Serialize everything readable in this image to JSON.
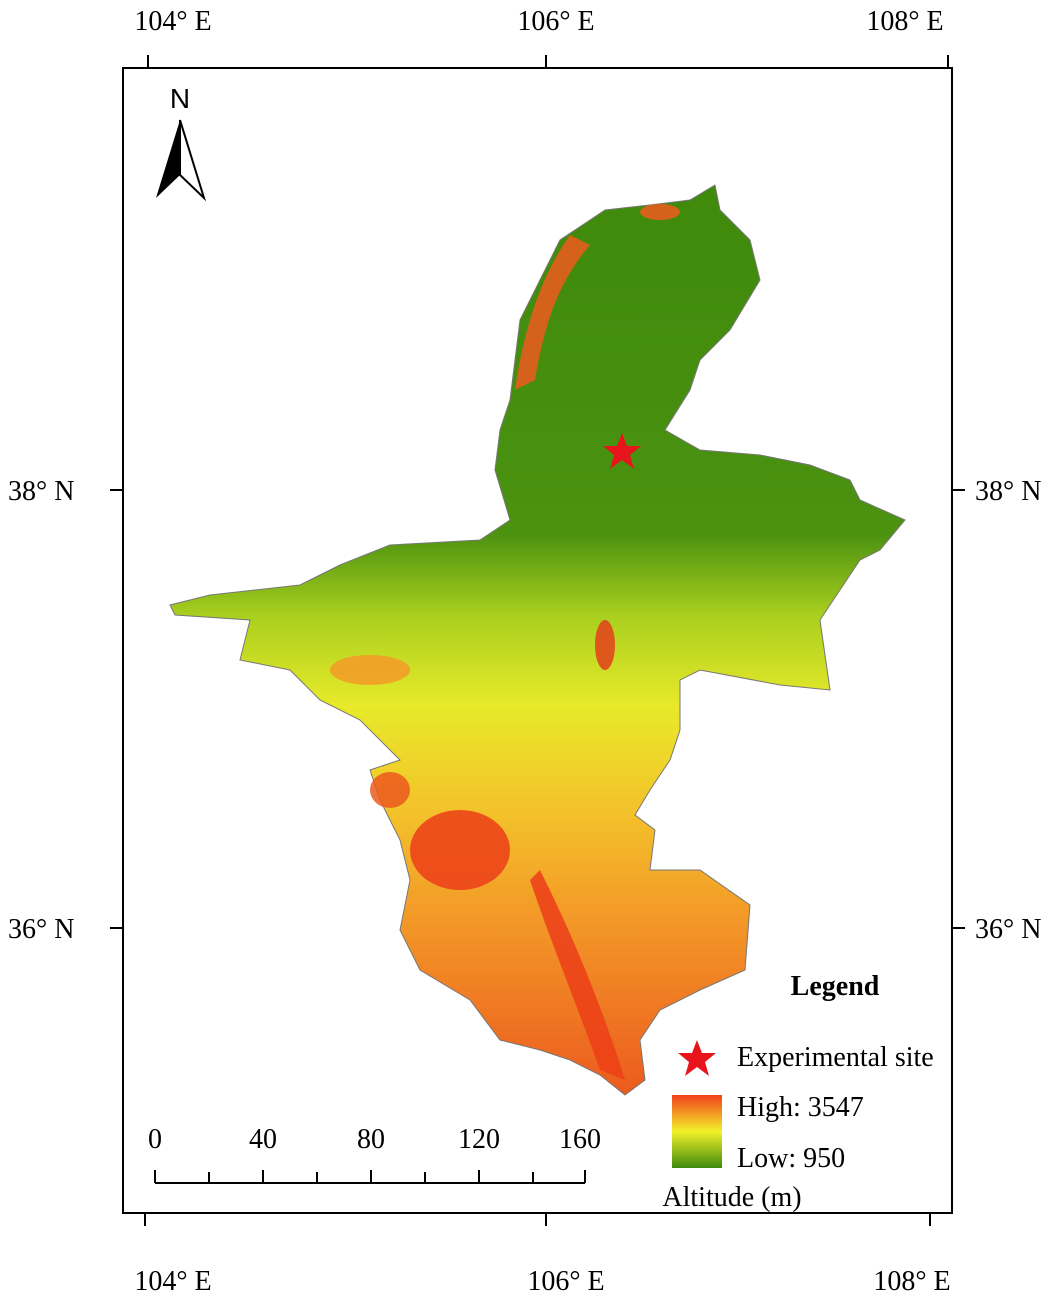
{
  "map": {
    "north": "N",
    "top_ticks": [
      "104° E",
      "106° E",
      "108° E"
    ],
    "bottom_ticks": [
      "104° E",
      "106° E",
      "108° E"
    ],
    "left_ticks": [
      "38° N",
      "36° N"
    ],
    "right_ticks": [
      "38° N",
      "36° N"
    ]
  },
  "legend": {
    "title": "Legend",
    "site": "Experimental site",
    "high": "High: 3547",
    "low": "Low: 950",
    "unit": "Altitude (m)"
  },
  "scale_bar": {
    "labels": [
      "0",
      "40",
      "80",
      "120",
      "160"
    ]
  }
}
